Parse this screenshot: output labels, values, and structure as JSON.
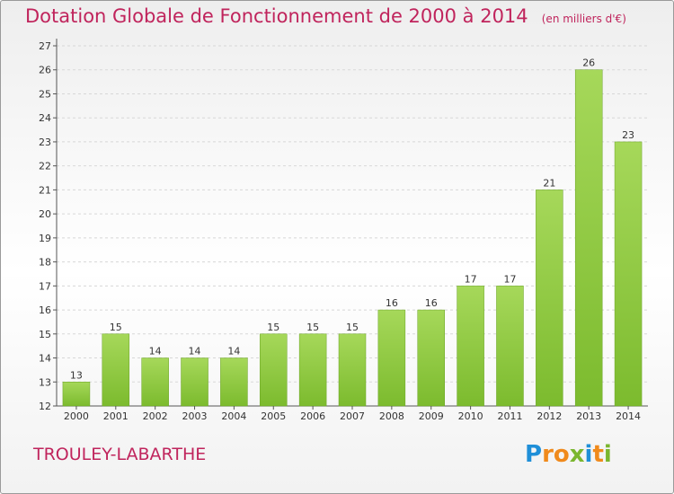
{
  "chart_data": {
    "type": "bar",
    "title": "Dotation Globale de Fonctionnement de 2000 à 2014",
    "subtitle": "(en milliers d'€)",
    "categories": [
      "2000",
      "2001",
      "2002",
      "2003",
      "2004",
      "2005",
      "2006",
      "2007",
      "2008",
      "2009",
      "2010",
      "2011",
      "2012",
      "2013",
      "2014"
    ],
    "values": [
      13,
      15,
      14,
      14,
      14,
      15,
      15,
      15,
      16,
      16,
      17,
      17,
      21,
      26,
      23
    ],
    "data_labels": [
      "13",
      "15",
      "14",
      "14",
      "14",
      "15",
      "15",
      "15",
      "16",
      "16",
      "17",
      "17",
      "21",
      "26",
      "23"
    ],
    "y_ticks": [
      "12",
      "13",
      "14",
      "15",
      "16",
      "17",
      "18",
      "19",
      "20",
      "21",
      "22",
      "23",
      "24",
      "25",
      "26",
      "27"
    ],
    "ylim": [
      12,
      27
    ],
    "xlabel": "",
    "ylabel": "",
    "grid": true,
    "bar_color": "#7cbb2e",
    "bar_color_light": "#a6d85a"
  },
  "footer": {
    "location": "TROULEY-LABARTHE",
    "logo_letters": [
      "P",
      "r",
      "o",
      "x",
      "i",
      "t",
      "i"
    ],
    "logo_colors": [
      "#1f8fd8",
      "#f08a1c",
      "#f08a1c",
      "#7ab62f",
      "#1f8fd8",
      "#f08a1c",
      "#7ab62f"
    ]
  }
}
